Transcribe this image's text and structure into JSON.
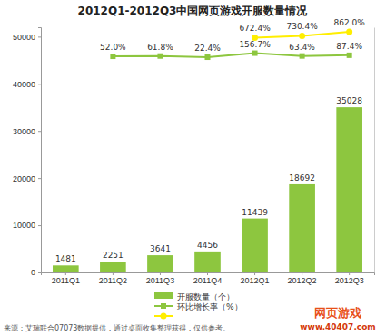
{
  "chart_data": {
    "type": "bar",
    "title": "2012Q1-2012Q3中国网页游戏开服数量情况",
    "categories": [
      "2011Q1",
      "2011Q2",
      "2011Q3",
      "2011Q4",
      "2012Q1",
      "2012Q2",
      "2012Q3"
    ],
    "series": [
      {
        "name": "开服数量（个）",
        "type": "bar",
        "color": "#8dc63f",
        "values": [
          1481,
          2251,
          3641,
          4456,
          11439,
          18692,
          35028
        ]
      },
      {
        "name": "环比增长率（%）",
        "type": "line",
        "axis": "y2",
        "color": "#8dc63f",
        "marker": "square",
        "values": [
          null,
          52.0,
          61.8,
          22.4,
          156.7,
          63.4,
          87.4
        ],
        "value_labels": [
          null,
          "52.0%",
          "61.8%",
          "22.4%",
          "156.7%",
          "63.4%",
          "87.4%"
        ]
      },
      {
        "type": "line",
        "axis": "y2",
        "color": "#ffee00",
        "marker": "circle",
        "values": [
          null,
          null,
          null,
          null,
          672.4,
          730.4,
          862.0
        ],
        "value_labels": [
          null,
          null,
          null,
          null,
          "672.4%",
          "730.4%",
          "862.0%"
        ]
      }
    ],
    "ylim": [
      0,
      52000
    ],
    "yticks": [
      0,
      10000,
      20000,
      30000,
      40000,
      50000
    ],
    "y2lim": [
      -7100,
      1015
    ],
    "y2ticks": [],
    "grid": false,
    "legend": "bottom",
    "data_labels": true,
    "annotations": [
      "来源：艾瑞联合07073数据提供，通过桌面收集整理获得，仅供参考。",
      "网页游戏",
      "www.40407.com"
    ]
  }
}
